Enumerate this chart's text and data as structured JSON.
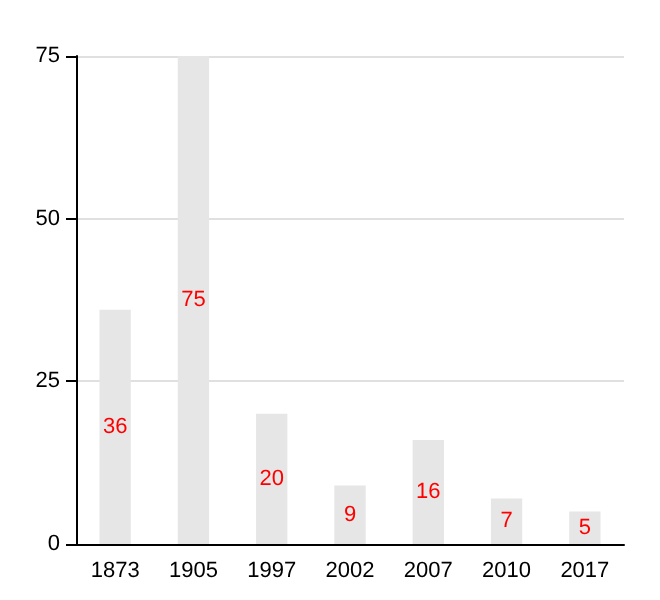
{
  "chart_data": {
    "type": "bar",
    "categories": [
      "1873",
      "1905",
      "1997",
      "2002",
      "2007",
      "2010",
      "2017"
    ],
    "values": [
      36,
      75,
      20,
      9,
      16,
      7,
      5
    ],
    "color": "#e6e6e6",
    "data_labels": true,
    "ylim": [
      0,
      75
    ],
    "yticks": [
      0,
      25,
      50,
      75
    ],
    "grid": "y"
  }
}
